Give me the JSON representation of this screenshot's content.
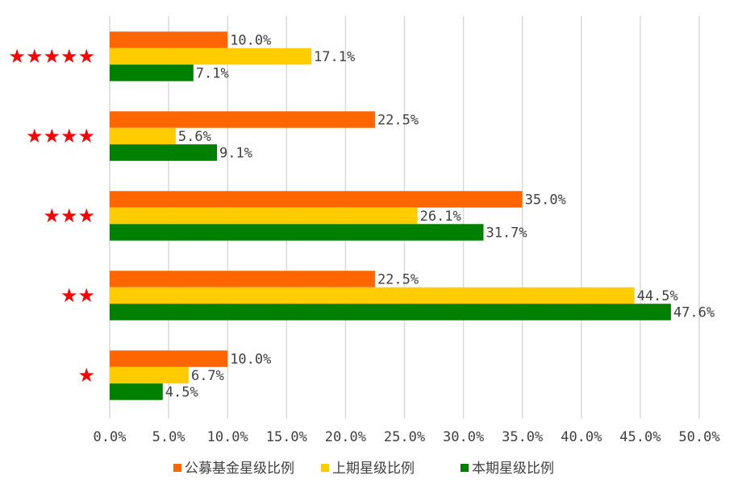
{
  "chart_data": {
    "type": "bar",
    "orientation": "horizontal",
    "categories": [
      "★★★★★",
      "★★★★",
      "★★★",
      "★★",
      "★"
    ],
    "series": [
      {
        "name": "公募基金星级比例",
        "color": "#FF6600",
        "values": [
          10.0,
          22.5,
          35.0,
          22.5,
          10.0
        ]
      },
      {
        "name": "上期星级比例",
        "color": "#FFCC00",
        "values": [
          17.1,
          5.6,
          26.1,
          44.5,
          6.7
        ]
      },
      {
        "name": "本期星级比例",
        "color": "#008000",
        "values": [
          7.1,
          9.1,
          31.7,
          47.6,
          4.5
        ]
      }
    ],
    "data_labels": [
      [
        "10.0%",
        "22.5%",
        "35.0%",
        "22.5%",
        "10.0%"
      ],
      [
        "17.1%",
        "5.6%",
        "26.1%",
        "44.5%",
        "6.7%"
      ],
      [
        "7.1%",
        "9.1%",
        "31.7%",
        "47.6%",
        "4.5%"
      ]
    ],
    "xticks": [
      0,
      5,
      10,
      15,
      20,
      25,
      30,
      35,
      40,
      45,
      50
    ],
    "xtick_labels": [
      "0.0%",
      "5.0%",
      "10.0%",
      "15.0%",
      "20.0%",
      "25.0%",
      "30.0%",
      "35.0%",
      "40.0%",
      "45.0%",
      "50.0%"
    ],
    "xlim": [
      0,
      50
    ],
    "grid": "vertical",
    "legend_position": "bottom",
    "category_color": "#FF0000",
    "title": "",
    "xlabel": "",
    "ylabel": ""
  }
}
